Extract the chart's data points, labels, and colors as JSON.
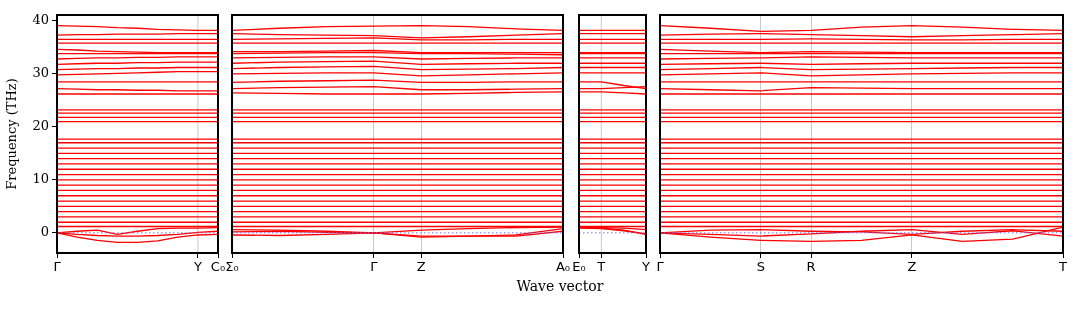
{
  "chart_data": [
    {
      "type": "line",
      "ylabel": "Frequency (THz)",
      "color": "#ff0000",
      "categories": [
        "Γ",
        null,
        null,
        null,
        null,
        null,
        null,
        "Y",
        "C₀"
      ],
      "ylim": [
        -3.8,
        41.1
      ],
      "yticks": [
        0,
        10,
        20,
        30,
        40
      ],
      "ref_lines": [
        {
          "axis": "y",
          "value": 0,
          "color": "#6f6fff",
          "line_style": "dotted"
        },
        {
          "axis": "x",
          "value": "Y",
          "color": "#c8c8c8"
        }
      ],
      "series": [
        {
          "values": [
            0,
            -0.8,
            -1.4,
            -1.8,
            -1.8,
            -1.5,
            -0.8,
            -0.4,
            -0.3
          ]
        },
        {
          "values": [
            0,
            -0.3,
            -0.5,
            -0.6,
            -0.6,
            -0.5,
            -0.3,
            0.1,
            0.3
          ]
        },
        {
          "values": [
            0,
            0.3,
            0.5,
            -0.3,
            0.3,
            0.8,
            0.9,
            0.9,
            1
          ]
        },
        {
          "values": [
            1.2,
            1.2,
            1.2,
            1.2,
            1.2,
            1.2,
            1.2,
            1.2,
            1.2
          ]
        },
        {
          "values": [
            2,
            2,
            2,
            2,
            2,
            2,
            2,
            2,
            2
          ]
        },
        {
          "values": [
            3,
            3,
            3,
            3,
            3,
            3,
            3,
            3,
            3
          ]
        },
        {
          "values": [
            4,
            4,
            4,
            4,
            4,
            4,
            4,
            4,
            4
          ]
        },
        {
          "values": [
            5,
            5,
            5,
            5,
            5,
            5,
            5,
            5,
            5
          ]
        },
        {
          "values": [
            6,
            6,
            6,
            6,
            6,
            6,
            6,
            6,
            6
          ]
        },
        {
          "values": [
            7,
            7,
            7,
            7,
            7,
            7,
            7,
            7,
            7
          ]
        },
        {
          "values": [
            8,
            8,
            8,
            8,
            8,
            8,
            8,
            8,
            8
          ]
        },
        {
          "values": [
            9,
            9,
            9,
            9,
            9,
            9,
            9,
            9,
            9
          ]
        },
        {
          "values": [
            10,
            10,
            10,
            10,
            10,
            10,
            10,
            10,
            10
          ]
        },
        {
          "values": [
            11,
            11,
            11,
            11,
            11,
            11,
            11,
            11,
            11
          ]
        },
        {
          "values": [
            12,
            12,
            12,
            12,
            12,
            12,
            12,
            12,
            12
          ]
        },
        {
          "values": [
            13,
            13,
            13,
            13,
            13,
            13,
            13,
            13,
            13
          ]
        },
        {
          "values": [
            14,
            14,
            14,
            14,
            14,
            14,
            14,
            14,
            14
          ]
        },
        {
          "values": [
            15,
            15,
            15,
            15,
            15,
            15,
            15,
            15,
            15
          ]
        },
        {
          "values": [
            16,
            16,
            16,
            16,
            16,
            16,
            16,
            16,
            16
          ]
        },
        {
          "values": [
            17,
            17,
            17,
            17,
            17,
            17,
            17,
            17,
            17
          ]
        },
        {
          "values": [
            17.7,
            17.7,
            17.7,
            17.7,
            17.7,
            17.7,
            17.7,
            17.7,
            17.7
          ]
        },
        {
          "values": [
            21,
            21,
            21,
            21,
            21,
            21,
            21,
            21,
            21
          ]
        },
        {
          "values": [
            21.8,
            21.8,
            21.8,
            21.8,
            21.8,
            21.8,
            21.8,
            21.8,
            21.8
          ]
        },
        {
          "values": [
            22.6,
            22.6,
            22.6,
            22.6,
            22.6,
            22.6,
            22.6,
            22.6,
            22.6
          ]
        },
        {
          "values": [
            23.2,
            23.2,
            23.2,
            23.2,
            23.2,
            23.2,
            23.2,
            23.2,
            23.2
          ]
        },
        {
          "values": [
            26.2,
            26.2,
            26.2,
            26.2,
            26.2,
            26.2,
            26.2,
            26.2,
            26.2
          ]
        },
        {
          "values": [
            27.2,
            27.1,
            27,
            27,
            26.9,
            26.9,
            26.8,
            26.8,
            26.8
          ]
        },
        {
          "values": [
            28.5,
            28.5,
            28.5,
            28.5,
            28.5,
            28.5,
            28.5,
            28.5,
            28.5
          ]
        },
        {
          "values": [
            29.8,
            29.9,
            30,
            30.1,
            30.2,
            30.3,
            30.4,
            30.4,
            30.4
          ]
        },
        {
          "values": [
            30.8,
            30.9,
            31,
            31,
            31.1,
            31.1,
            31.2,
            31.2,
            31.2
          ]
        },
        {
          "values": [
            31.8,
            31.9,
            32,
            32,
            32.1,
            32.1,
            32.2,
            32.2,
            32.2
          ]
        },
        {
          "values": [
            32.8,
            32.9,
            33,
            33,
            33.1,
            33.1,
            33.2,
            33.2,
            33.2
          ]
        },
        {
          "values": [
            33.8,
            33.8,
            33.8,
            33.8,
            33.8,
            33.8,
            33.8,
            33.8,
            33.8
          ]
        },
        {
          "values": [
            34.6,
            34.5,
            34.3,
            34.2,
            34.1,
            34,
            34,
            34,
            34
          ]
        },
        {
          "values": [
            35.8,
            35.8,
            35.8,
            35.8,
            35.8,
            35.8,
            35.8,
            35.8,
            35.8
          ]
        },
        {
          "values": [
            36.5,
            36.5,
            36.5,
            36.5,
            36.5,
            36.5,
            36.5,
            36.5,
            36.5
          ]
        },
        {
          "values": [
            37.3,
            37.4,
            37.4,
            37.5,
            37.5,
            37.5,
            37.6,
            37.6,
            37.6
          ]
        },
        {
          "values": [
            39.1,
            39,
            38.9,
            38.7,
            38.6,
            38.4,
            38.3,
            38.2,
            38.2
          ]
        }
      ]
    },
    {
      "type": "line",
      "xlabel": "Wave vector",
      "color": "#ff0000",
      "grid": "x",
      "tick_labels": "x",
      "categories": [
        "Σ₀",
        null,
        null,
        "Γ",
        "Z",
        null,
        null,
        "A₀"
      ],
      "ylim": [
        -3.8,
        41.1
      ],
      "yticks": [
        0,
        10,
        20,
        30,
        40
      ],
      "ref_lines": [
        {
          "axis": "y",
          "value": 0,
          "color": "#6f6fff",
          "line_style": "dotted"
        }
      ],
      "series": [
        {
          "values": [
            0.2,
            0.3,
            0.1,
            0,
            -0.8,
            -0.6,
            -0.6,
            0.3
          ]
        },
        {
          "values": [
            -0.4,
            -0.5,
            -0.3,
            0,
            -0.6,
            -0.6,
            -0.4,
            0.8
          ]
        },
        {
          "values": [
            0.6,
            0.5,
            0.3,
            0,
            0.5,
            0.8,
            1,
            1.1
          ]
        },
        {
          "values": [
            1.2,
            1.2,
            1.2,
            1.2,
            1.2,
            1.2,
            1.2,
            1.2
          ]
        },
        {
          "values": [
            2,
            2,
            2,
            2,
            2,
            2,
            2,
            2
          ]
        },
        {
          "values": [
            3,
            3,
            3,
            3,
            3,
            3,
            3,
            3
          ]
        },
        {
          "values": [
            4,
            4,
            4,
            4,
            4,
            4,
            4,
            4
          ]
        },
        {
          "values": [
            5,
            5,
            5,
            5,
            5,
            5,
            5,
            5
          ]
        },
        {
          "values": [
            6,
            6,
            6,
            6,
            6,
            6,
            6,
            6
          ]
        },
        {
          "values": [
            7,
            7,
            7,
            7,
            7,
            7,
            7,
            7
          ]
        },
        {
          "values": [
            8,
            8,
            8,
            8,
            8,
            8,
            8,
            8
          ]
        },
        {
          "values": [
            9,
            9,
            9,
            9,
            9,
            9,
            9,
            9
          ]
        },
        {
          "values": [
            10,
            10,
            10,
            10,
            10,
            10,
            10,
            10
          ]
        },
        {
          "values": [
            11,
            11,
            11,
            11,
            11,
            11,
            11,
            11
          ]
        },
        {
          "values": [
            12,
            12,
            12,
            12,
            12,
            12,
            12,
            12
          ]
        },
        {
          "values": [
            13,
            13,
            13,
            13,
            13,
            13,
            13,
            13
          ]
        },
        {
          "values": [
            14,
            14,
            14,
            14,
            14,
            14,
            14,
            14
          ]
        },
        {
          "values": [
            15,
            15,
            15,
            15,
            15,
            15,
            15,
            15
          ]
        },
        {
          "values": [
            16,
            16,
            16,
            16,
            16,
            16,
            16,
            16
          ]
        },
        {
          "values": [
            17,
            17,
            17,
            17,
            17,
            17,
            17,
            17
          ]
        },
        {
          "values": [
            17.7,
            17.7,
            17.7,
            17.7,
            17.7,
            17.7,
            17.7,
            17.7
          ]
        },
        {
          "values": [
            21,
            21,
            21,
            21,
            21,
            21,
            21,
            21
          ]
        },
        {
          "values": [
            21.8,
            21.8,
            21.8,
            21.8,
            21.8,
            21.8,
            21.8,
            21.8
          ]
        },
        {
          "values": [
            22.6,
            22.6,
            22.6,
            22.6,
            22.6,
            22.6,
            22.6,
            22.6
          ]
        },
        {
          "values": [
            23.2,
            23.2,
            23.2,
            23.2,
            23.2,
            23.2,
            23.2,
            23.2
          ]
        },
        {
          "values": [
            26.4,
            26.3,
            26.2,
            26.2,
            26.2,
            26.3,
            26.5,
            26.6
          ]
        },
        {
          "values": [
            27.2,
            27.4,
            27.5,
            27.6,
            27,
            27,
            27.1,
            27.2
          ]
        },
        {
          "values": [
            28.4,
            28.6,
            28.7,
            28.8,
            28.4,
            28.4,
            28.5,
            28.5
          ]
        },
        {
          "values": [
            30,
            30.1,
            30.2,
            30.2,
            29.6,
            29.8,
            30,
            30.2
          ]
        },
        {
          "values": [
            31,
            31.2,
            31.3,
            31.4,
            30.8,
            30.9,
            31,
            31.2
          ]
        },
        {
          "values": [
            32,
            32.2,
            32.3,
            32.4,
            31.8,
            31.9,
            32,
            32
          ]
        },
        {
          "values": [
            33,
            33.1,
            33.2,
            33.2,
            32.8,
            32.9,
            33,
            33
          ]
        },
        {
          "values": [
            33.8,
            33.9,
            34,
            34,
            33.8,
            33.8,
            33.7,
            33.6
          ]
        },
        {
          "values": [
            34.2,
            34.2,
            34.3,
            34.4,
            34,
            34,
            34,
            34
          ]
        },
        {
          "values": [
            35.8,
            35.8,
            35.8,
            35.8,
            35.8,
            35.8,
            35.8,
            35.8
          ]
        },
        {
          "values": [
            36.5,
            36.6,
            36.7,
            36.8,
            36.4,
            36.4,
            36.5,
            36.5
          ]
        },
        {
          "values": [
            37.6,
            37.4,
            37.3,
            37.2,
            36.8,
            37,
            37.3,
            37.6
          ]
        },
        {
          "values": [
            38.2,
            38.6,
            38.9,
            39,
            39.1,
            38.9,
            38.5,
            38.2
          ]
        }
      ]
    },
    {
      "type": "line",
      "color": "#ff0000",
      "tick_labels": "x",
      "categories": [
        "E₀",
        "T",
        null,
        "Y"
      ],
      "ylim": [
        -3.8,
        41.1
      ],
      "yticks": [
        0,
        10,
        20,
        30,
        40
      ],
      "ref_lines": [
        {
          "axis": "y",
          "value": 0,
          "color": "#6f6fff",
          "line_style": "dotted"
        },
        {
          "axis": "x",
          "value": "T",
          "color": "#c8c8c8"
        }
      ],
      "series": [
        {
          "values": [
            1,
            0.9,
            0.5,
            -0.3
          ]
        },
        {
          "values": [
            0.9,
            0.8,
            0.4,
            -0.2
          ]
        },
        {
          "values": [
            1.1,
            1,
            0.9,
            0.6
          ]
        },
        {
          "values": [
            1.2,
            1.2,
            1.2,
            1.2
          ]
        },
        {
          "values": [
            2,
            2,
            2,
            2
          ]
        },
        {
          "values": [
            3,
            3,
            3,
            3
          ]
        },
        {
          "values": [
            4,
            4,
            4,
            4
          ]
        },
        {
          "values": [
            5,
            5,
            5,
            5
          ]
        },
        {
          "values": [
            6,
            6,
            6,
            6
          ]
        },
        {
          "values": [
            7,
            7,
            7,
            7
          ]
        },
        {
          "values": [
            8,
            8,
            8,
            8
          ]
        },
        {
          "values": [
            9,
            9,
            9,
            9
          ]
        },
        {
          "values": [
            10,
            10,
            10,
            10
          ]
        },
        {
          "values": [
            11,
            11,
            11,
            11
          ]
        },
        {
          "values": [
            12,
            12,
            12,
            12
          ]
        },
        {
          "values": [
            13,
            13,
            13,
            13
          ]
        },
        {
          "values": [
            14,
            14,
            14,
            14
          ]
        },
        {
          "values": [
            15,
            15,
            15,
            15
          ]
        },
        {
          "values": [
            16,
            16,
            16,
            16
          ]
        },
        {
          "values": [
            17,
            17,
            17,
            17
          ]
        },
        {
          "values": [
            17.7,
            17.7,
            17.7,
            17.7
          ]
        },
        {
          "values": [
            21,
            21,
            21,
            21
          ]
        },
        {
          "values": [
            21.8,
            21.8,
            21.8,
            21.8
          ]
        },
        {
          "values": [
            22.6,
            22.6,
            22.6,
            22.6
          ]
        },
        {
          "values": [
            23.2,
            23.2,
            23.2,
            23.2
          ]
        },
        {
          "values": [
            26.6,
            26.6,
            26.4,
            26.2
          ]
        },
        {
          "values": [
            27.2,
            27.2,
            27.4,
            27.6
          ]
        },
        {
          "values": [
            28.5,
            28.5,
            27.8,
            27.2
          ]
        },
        {
          "values": [
            30.2,
            30.2,
            30.2,
            30.2
          ]
        },
        {
          "values": [
            31.2,
            31.2,
            31.2,
            31.2
          ]
        },
        {
          "values": [
            32,
            32,
            32,
            32
          ]
        },
        {
          "values": [
            33,
            33,
            33,
            33
          ]
        },
        {
          "values": [
            33.8,
            33.8,
            33.8,
            33.8
          ]
        },
        {
          "values": [
            34,
            34,
            34,
            34
          ]
        },
        {
          "values": [
            35.8,
            35.8,
            35.8,
            35.8
          ]
        },
        {
          "values": [
            36.5,
            36.5,
            36.5,
            36.5
          ]
        },
        {
          "values": [
            37.6,
            37.6,
            37.6,
            37.6
          ]
        },
        {
          "values": [
            38.2,
            38.2,
            38.2,
            38.2
          ]
        }
      ]
    },
    {
      "type": "line",
      "color": "#ff0000",
      "grid": "x",
      "tick_labels": "x",
      "categories": [
        "Γ",
        null,
        "S",
        "R",
        null,
        "Z",
        null,
        null,
        "T"
      ],
      "ylim": [
        -3.8,
        41.1
      ],
      "yticks": [
        0,
        10,
        20,
        30,
        40
      ],
      "ref_lines": [
        {
          "axis": "y",
          "value": 0,
          "color": "#6f6fff",
          "line_style": "dotted"
        }
      ],
      "series": [
        {
          "values": [
            0,
            -0.8,
            -1.4,
            -1.6,
            -1.4,
            -0.4,
            -1.6,
            -1.2,
            1.1
          ]
        },
        {
          "values": [
            0,
            -0.3,
            -0.6,
            -0.2,
            0.3,
            0.6,
            -0.3,
            0.4,
            -0.6
          ]
        },
        {
          "values": [
            0,
            0.5,
            0.6,
            0.3,
            0.2,
            -0.3,
            0.3,
            0.6,
            0.3
          ]
        },
        {
          "values": [
            1.2,
            1.2,
            1.2,
            1.2,
            1.2,
            1.2,
            1.2,
            1.2,
            1.2
          ]
        },
        {
          "values": [
            2,
            2,
            2,
            2,
            2,
            2,
            2,
            2,
            2
          ]
        },
        {
          "values": [
            3,
            3,
            3,
            3,
            3,
            3,
            3,
            3,
            3
          ]
        },
        {
          "values": [
            4,
            4,
            4,
            4,
            4,
            4,
            4,
            4,
            4
          ]
        },
        {
          "values": [
            5,
            5,
            5,
            5,
            5,
            5,
            5,
            5,
            5
          ]
        },
        {
          "values": [
            6,
            6,
            6,
            6,
            6,
            6,
            6,
            6,
            6
          ]
        },
        {
          "values": [
            7,
            7,
            7,
            7,
            7,
            7,
            7,
            7,
            7
          ]
        },
        {
          "values": [
            8,
            8,
            8,
            8,
            8,
            8,
            8,
            8,
            8
          ]
        },
        {
          "values": [
            9,
            9,
            9,
            9,
            9,
            9,
            9,
            9,
            9
          ]
        },
        {
          "values": [
            10,
            10,
            10,
            10,
            10,
            10,
            10,
            10,
            10
          ]
        },
        {
          "values": [
            11,
            11,
            11,
            11,
            11,
            11,
            11,
            11,
            11
          ]
        },
        {
          "values": [
            12,
            12,
            12,
            12,
            12,
            12,
            12,
            12,
            12
          ]
        },
        {
          "values": [
            13,
            13,
            13,
            13,
            13,
            13,
            13,
            13,
            13
          ]
        },
        {
          "values": [
            14,
            14,
            14,
            14,
            14,
            14,
            14,
            14,
            14
          ]
        },
        {
          "values": [
            15,
            15,
            15,
            15,
            15,
            15,
            15,
            15,
            15
          ]
        },
        {
          "values": [
            16,
            16,
            16,
            16,
            16,
            16,
            16,
            16,
            16
          ]
        },
        {
          "values": [
            17,
            17,
            17,
            17,
            17,
            17,
            17,
            17,
            17
          ]
        },
        {
          "values": [
            17.7,
            17.7,
            17.7,
            17.7,
            17.7,
            17.7,
            17.7,
            17.7,
            17.7
          ]
        },
        {
          "values": [
            21,
            21,
            21,
            21,
            21,
            21,
            21,
            21,
            21
          ]
        },
        {
          "values": [
            21.8,
            21.8,
            21.8,
            21.8,
            21.8,
            21.8,
            21.8,
            21.8,
            21.8
          ]
        },
        {
          "values": [
            22.6,
            22.6,
            22.6,
            22.6,
            22.6,
            22.6,
            22.6,
            22.6,
            22.6
          ]
        },
        {
          "values": [
            23.2,
            23.2,
            23.2,
            23.2,
            23.2,
            23.2,
            23.2,
            23.2,
            23.2
          ]
        },
        {
          "values": [
            26.2,
            26.2,
            26.2,
            26.2,
            26.2,
            26.2,
            26.2,
            26.2,
            26.2
          ]
        },
        {
          "values": [
            27.2,
            27,
            26.8,
            27.4,
            27.3,
            27.2,
            27.2,
            27.2,
            27.2
          ]
        },
        {
          "values": [
            28.5,
            28.5,
            28.5,
            28.5,
            28.5,
            28.5,
            28.5,
            28.5,
            28.5
          ]
        },
        {
          "values": [
            29.8,
            30,
            30.2,
            29.6,
            29.8,
            30,
            30.1,
            30.2,
            30.2
          ]
        },
        {
          "values": [
            30.8,
            31,
            31.2,
            30.8,
            30.9,
            31,
            31.1,
            31.2,
            31.2
          ]
        },
        {
          "values": [
            31.8,
            31.9,
            32,
            31.8,
            31.9,
            32,
            32,
            32,
            32
          ]
        },
        {
          "values": [
            32.8,
            32.9,
            33,
            33.2,
            33.1,
            33,
            33,
            33,
            33
          ]
        },
        {
          "values": [
            33.8,
            33.8,
            33.8,
            33.8,
            33.8,
            33.8,
            33.8,
            33.8,
            33.8
          ]
        },
        {
          "values": [
            34.6,
            34.3,
            34,
            34.2,
            34.1,
            34,
            34,
            34,
            34
          ]
        },
        {
          "values": [
            35.8,
            35.8,
            35.8,
            35.8,
            35.8,
            35.8,
            35.8,
            35.8,
            35.8
          ]
        },
        {
          "values": [
            36.5,
            36.5,
            36.5,
            36.6,
            36.5,
            36.4,
            36.4,
            36.5,
            36.5
          ]
        },
        {
          "values": [
            37.3,
            37.5,
            37.6,
            37.4,
            37.2,
            37,
            37.2,
            37.4,
            37.6
          ]
        },
        {
          "values": [
            39.1,
            38.6,
            38,
            38.2,
            38.8,
            39.1,
            38.8,
            38.4,
            38.2
          ]
        }
      ]
    }
  ]
}
